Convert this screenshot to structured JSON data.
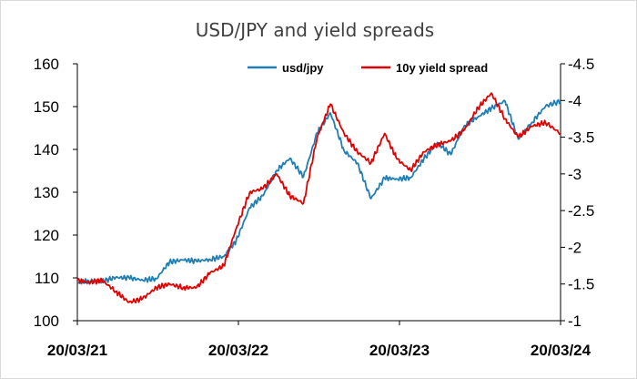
{
  "chart_data": {
    "type": "line",
    "title": "USD/JPY and yield spreads",
    "xlabel": "",
    "ylabel": "",
    "x_ticks": [
      "20/03/21",
      "20/03/22",
      "20/03/23",
      "20/03/24"
    ],
    "x_range": [
      "2021-03-20",
      "2024-03-20"
    ],
    "y_left": {
      "min": 100,
      "max": 160,
      "ticks": [
        "100",
        "110",
        "120",
        "130",
        "140",
        "150",
        "160"
      ]
    },
    "y_right": {
      "min": -1,
      "max": -4.5,
      "reversed": true,
      "ticks": [
        "-1",
        "-1.5",
        "-2",
        "-2.5",
        "-3",
        "-3.5",
        "-4",
        "-4.5"
      ]
    },
    "grid": false,
    "legend_position": "top",
    "series": [
      {
        "name": "usd/jpy",
        "axis": "left",
        "color": "#1f7fb4",
        "points": [
          [
            "2021-03-20",
            108.9
          ],
          [
            "2021-04-15",
            109.3
          ],
          [
            "2021-05-15",
            109.2
          ],
          [
            "2021-06-15",
            110.1
          ],
          [
            "2021-07-15",
            110.0
          ],
          [
            "2021-08-15",
            109.5
          ],
          [
            "2021-09-15",
            109.8
          ],
          [
            "2021-10-15",
            113.7
          ],
          [
            "2021-11-15",
            114.2
          ],
          [
            "2021-12-15",
            113.9
          ],
          [
            "2022-01-15",
            114.3
          ],
          [
            "2022-02-15",
            115.0
          ],
          [
            "2022-03-15",
            118.6
          ],
          [
            "2022-04-15",
            126.4
          ],
          [
            "2022-05-15",
            129.2
          ],
          [
            "2022-06-15",
            135.1
          ],
          [
            "2022-07-15",
            137.9
          ],
          [
            "2022-08-15",
            133.6
          ],
          [
            "2022-09-15",
            143.9
          ],
          [
            "2022-10-15",
            148.5
          ],
          [
            "2022-11-15",
            139.7
          ],
          [
            "2022-12-15",
            136.8
          ],
          [
            "2023-01-15",
            128.5
          ],
          [
            "2023-02-15",
            133.3
          ],
          [
            "2023-03-15",
            133.1
          ],
          [
            "2023-04-15",
            133.4
          ],
          [
            "2023-05-15",
            137.8
          ],
          [
            "2023-06-15",
            141.6
          ],
          [
            "2023-07-15",
            138.8
          ],
          [
            "2023-08-15",
            145.6
          ],
          [
            "2023-09-15",
            147.6
          ],
          [
            "2023-10-15",
            149.6
          ],
          [
            "2023-11-15",
            151.3
          ],
          [
            "2023-12-15",
            142.4
          ],
          [
            "2024-01-15",
            146.3
          ],
          [
            "2024-02-15",
            150.1
          ],
          [
            "2024-03-20",
            151.3
          ]
        ]
      },
      {
        "name": "10y yield spread",
        "axis": "right",
        "color": "#e00000",
        "points": [
          [
            "2021-03-20",
            -1.55
          ],
          [
            "2021-04-15",
            -1.52
          ],
          [
            "2021-05-15",
            -1.55
          ],
          [
            "2021-06-15",
            -1.4
          ],
          [
            "2021-07-15",
            -1.25
          ],
          [
            "2021-08-15",
            -1.3
          ],
          [
            "2021-09-15",
            -1.45
          ],
          [
            "2021-10-15",
            -1.5
          ],
          [
            "2021-11-15",
            -1.45
          ],
          [
            "2021-12-15",
            -1.45
          ],
          [
            "2022-01-15",
            -1.65
          ],
          [
            "2022-02-15",
            -1.75
          ],
          [
            "2022-03-15",
            -2.25
          ],
          [
            "2022-04-15",
            -2.75
          ],
          [
            "2022-05-15",
            -2.8
          ],
          [
            "2022-06-15",
            -3.0
          ],
          [
            "2022-07-15",
            -2.7
          ],
          [
            "2022-08-15",
            -2.6
          ],
          [
            "2022-09-15",
            -3.5
          ],
          [
            "2022-10-15",
            -3.95
          ],
          [
            "2022-11-15",
            -3.55
          ],
          [
            "2022-12-15",
            -3.3
          ],
          [
            "2023-01-15",
            -3.15
          ],
          [
            "2023-02-15",
            -3.55
          ],
          [
            "2023-03-15",
            -3.2
          ],
          [
            "2023-04-15",
            -3.05
          ],
          [
            "2023-05-15",
            -3.3
          ],
          [
            "2023-06-15",
            -3.4
          ],
          [
            "2023-07-15",
            -3.45
          ],
          [
            "2023-08-15",
            -3.6
          ],
          [
            "2023-09-15",
            -3.9
          ],
          [
            "2023-10-15",
            -4.1
          ],
          [
            "2023-11-15",
            -3.75
          ],
          [
            "2023-12-15",
            -3.5
          ],
          [
            "2024-01-15",
            -3.65
          ],
          [
            "2024-02-15",
            -3.7
          ],
          [
            "2024-03-20",
            -3.55
          ]
        ]
      }
    ]
  }
}
